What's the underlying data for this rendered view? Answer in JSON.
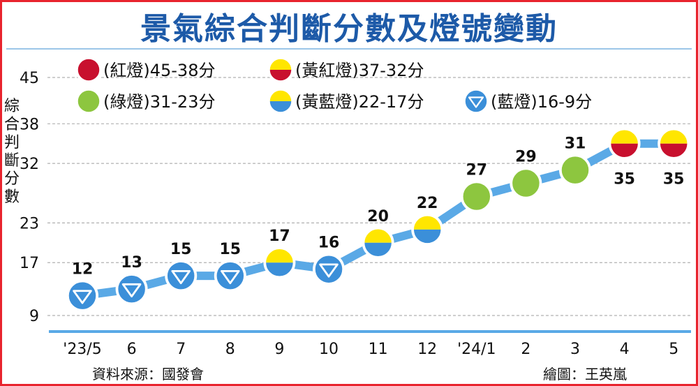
{
  "title": "景氣綜合判斷分數及燈號變動",
  "ylabel_chars": [
    "綜",
    "合",
    "判",
    "斷",
    "分",
    "數"
  ],
  "source": "資料來源：國發會",
  "credit": "繪圖：王英嵐",
  "colors": {
    "red": "#c8102e",
    "yellow": "#ffe600",
    "green": "#8dc63f",
    "blue": "#3b8fd9",
    "line": "#5aa9e6",
    "grid": "#b0b0b0",
    "title": "#1d5aa8"
  },
  "legend": [
    {
      "signal": "red",
      "label": "(紅燈)45-38分"
    },
    {
      "signal": "yellow-red",
      "label": "(黃紅燈)37-32分"
    },
    {
      "signal": "green",
      "label": "(綠燈)31-23分"
    },
    {
      "signal": "yellow-blue",
      "label": "(黃藍燈)22-17分"
    },
    {
      "signal": "blue",
      "label": "(藍燈)16-9分"
    }
  ],
  "chart_data": {
    "type": "line",
    "categories": [
      "'23/5",
      "6",
      "7",
      "8",
      "9",
      "10",
      "11",
      "12",
      "'24/1",
      "2",
      "3",
      "4",
      "5"
    ],
    "values": [
      12,
      13,
      15,
      15,
      17,
      16,
      20,
      22,
      27,
      29,
      31,
      35,
      35
    ],
    "signals": [
      "blue",
      "blue",
      "blue",
      "blue",
      "yellow-blue",
      "blue",
      "yellow-blue",
      "yellow-blue",
      "green",
      "green",
      "green",
      "yellow-red",
      "yellow-red"
    ],
    "yticks": [
      9,
      17,
      23,
      32,
      38,
      45
    ],
    "ylim": [
      9,
      45
    ],
    "grid": true,
    "legend_position": "top"
  }
}
